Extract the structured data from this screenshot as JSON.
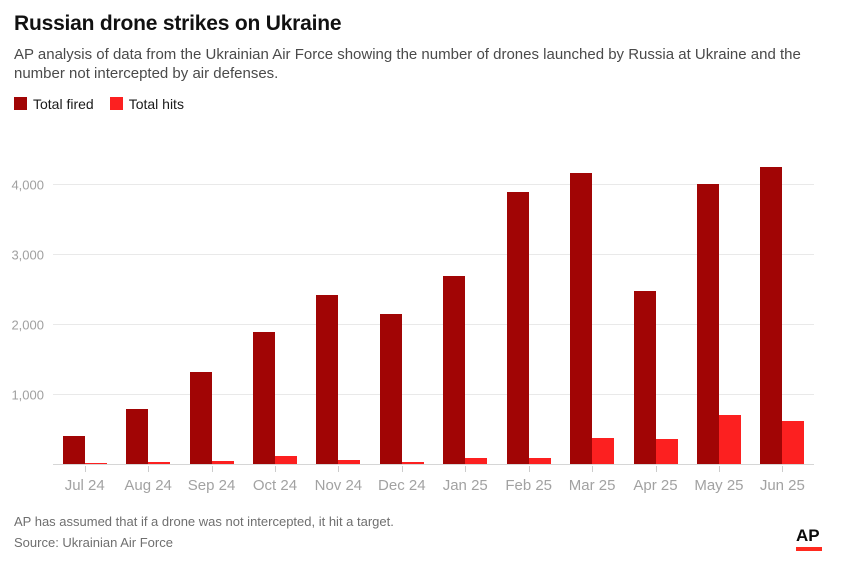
{
  "header": {
    "title": "Russian drone strikes on Ukraine",
    "subtitle": "AP analysis of data from the Ukrainian Air Force showing the number of drones launched by Russia at Ukraine and the number not intercepted by air defenses."
  },
  "legend": {
    "items": [
      {
        "label": "Total fired",
        "color": "#a10505"
      },
      {
        "label": "Total hits",
        "color": "#fc2020"
      }
    ]
  },
  "chart_data": {
    "type": "bar",
    "title": "Russian drone strikes on Ukraine",
    "categories": [
      "Jul 24",
      "Aug 24",
      "Sep 24",
      "Oct 24",
      "Nov 24",
      "Dec 24",
      "Jan 25",
      "Feb 25",
      "Mar 25",
      "Apr 25",
      "May 25",
      "Jun 25"
    ],
    "series": [
      {
        "name": "Total fired",
        "color": "#a10505",
        "values": [
          420,
          800,
          1330,
          1900,
          2430,
          2160,
          2700,
          3900,
          4170,
          2490,
          4010,
          4260
        ]
      },
      {
        "name": "Total hits",
        "color": "#fc2020",
        "values": [
          30,
          48,
          60,
          125,
          70,
          50,
          100,
          100,
          380,
          375,
          710,
          625
        ]
      }
    ],
    "xlabel": "",
    "ylabel": "",
    "ylim": [
      0,
      4470
    ],
    "yticks": [
      1000,
      2000,
      3000,
      4000
    ],
    "grid": true,
    "legend_position": "top-left"
  },
  "footer": {
    "note": "AP has assumed that if a drone was not intercepted, it hit a target.",
    "source": "Source: Ukrainian Air Force",
    "logo_text": "AP"
  },
  "colors": {
    "total_fired": "#a10505",
    "total_hits": "#fc2020",
    "ap_logo_red": "#ff2a1f",
    "gridline": "#e9e9e9",
    "axis_line": "#d6d6d6",
    "axis_text": "#a0a0a0"
  }
}
